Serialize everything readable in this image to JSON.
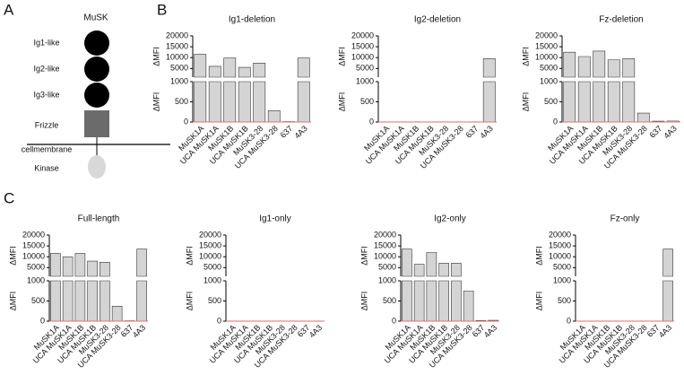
{
  "panel_labels": [
    "A",
    "B",
    "C"
  ],
  "diagram": {
    "title": "MuSK",
    "domains": [
      "Ig1-like",
      "Ig2-like",
      "Ig3-like",
      "Frizzle"
    ],
    "membrane": "cellmembrane",
    "kinase": "Kinase"
  },
  "chart_data": [
    {
      "type": "bar",
      "title": "Ig1-deletion",
      "ylabel": "ΔMFI",
      "categories": [
        "MuSK1A",
        "UCA MuSK1A",
        "MuSK1B",
        "UCA MuSK1B",
        "MuSK3-28",
        "UCA MuSK3-28",
        "637",
        "4A3"
      ],
      "values": [
        11500,
        6000,
        9800,
        5500,
        7500,
        280,
        10,
        9800
      ],
      "color": "#d4d4d4",
      "ylim_lower": [
        0,
        1000
      ],
      "yticks_lower": [
        0,
        500,
        1000
      ],
      "ylim_upper": [
        1000,
        20000
      ],
      "yticks_upper": [
        5000,
        10000,
        15000,
        20000
      ]
    },
    {
      "type": "bar",
      "title": "Ig2-deletion",
      "ylabel": "ΔMFI",
      "categories": [
        "MuSK1A",
        "UCA MuSK1A",
        "MuSK1B",
        "UCA MuSK1B",
        "MuSK3-28",
        "UCA MuSK3-28",
        "637",
        "4A3"
      ],
      "values": [
        5,
        5,
        5,
        5,
        5,
        5,
        5,
        9500
      ],
      "color": "#d4d4d4",
      "ylim_lower": [
        0,
        1000
      ],
      "yticks_lower": [
        0,
        500,
        1000
      ],
      "ylim_upper": [
        1000,
        20000
      ],
      "yticks_upper": [
        5000,
        10000,
        15000,
        20000
      ]
    },
    {
      "type": "bar",
      "title": "Fz-deletion",
      "ylabel": "ΔMFI",
      "categories": [
        "MuSK1A",
        "UCA MuSK1A",
        "MuSK1B",
        "UCA MuSK1B",
        "MuSK3-28",
        "UCA MuSK3-28",
        "637",
        "4A3"
      ],
      "values": [
        12500,
        10500,
        13000,
        9000,
        9500,
        220,
        20,
        25
      ],
      "color": "#d4d4d4",
      "ylim_lower": [
        0,
        1000
      ],
      "yticks_lower": [
        0,
        500,
        1000
      ],
      "ylim_upper": [
        1000,
        20000
      ],
      "yticks_upper": [
        5000,
        10000,
        15000,
        20000
      ]
    },
    {
      "type": "bar",
      "title": "Full-length",
      "ylabel": "ΔMFI",
      "categories": [
        "MuSK1A",
        "UCA MuSK1A",
        "MuSK1B",
        "UCA MuSK1B",
        "MuSK3-28",
        "UCA MuSK3-28",
        "637",
        "4A3"
      ],
      "values": [
        11500,
        10000,
        11500,
        8000,
        7500,
        370,
        10,
        13500
      ],
      "color": "#d4d4d4",
      "ylim_lower": [
        0,
        1000
      ],
      "yticks_lower": [
        0,
        500,
        1000
      ],
      "ylim_upper": [
        1000,
        20000
      ],
      "yticks_upper": [
        5000,
        10000,
        15000,
        20000
      ]
    },
    {
      "type": "bar",
      "title": "Ig1-only",
      "ylabel": "ΔMFI",
      "categories": [
        "MuSK1A",
        "UCA MuSK1A",
        "MuSK1B",
        "UCA MuSK1B",
        "MuSK3-28",
        "UCA MuSK3-28",
        "637",
        "4A3"
      ],
      "values": [
        5,
        5,
        5,
        5,
        5,
        5,
        5,
        5
      ],
      "color": "#d4d4d4",
      "ylim_lower": [
        0,
        1000
      ],
      "yticks_lower": [
        0,
        500,
        1000
      ],
      "ylim_upper": [
        1000,
        20000
      ],
      "yticks_upper": [
        5000,
        10000,
        15000,
        20000
      ]
    },
    {
      "type": "bar",
      "title": "Ig2-only",
      "ylabel": "ΔMFI",
      "categories": [
        "MuSK1A",
        "UCA MuSK1A",
        "MuSK1B",
        "UCA MuSK1B",
        "MuSK3-28",
        "UCA MuSK3-28",
        "637",
        "4A3"
      ],
      "values": [
        13500,
        6500,
        12000,
        7000,
        7000,
        750,
        15,
        20
      ],
      "color": "#d4d4d4",
      "ylim_lower": [
        0,
        1000
      ],
      "yticks_lower": [
        0,
        500,
        1000
      ],
      "ylim_upper": [
        1000,
        20000
      ],
      "yticks_upper": [
        5000,
        10000,
        15000,
        20000
      ]
    },
    {
      "type": "bar",
      "title": "Fz-only",
      "ylabel": "ΔMFI",
      "categories": [
        "MuSK1A",
        "UCA MuSK1A",
        "MuSK1B",
        "UCA MuSK1B",
        "MuSK3-28",
        "UCA MuSK3-28",
        "637",
        "4A3"
      ],
      "values": [
        5,
        5,
        5,
        5,
        5,
        5,
        5,
        13500
      ],
      "color": "#d4d4d4",
      "ylim_lower": [
        0,
        1000
      ],
      "yticks_lower": [
        0,
        500,
        1000
      ],
      "ylim_upper": [
        1000,
        20000
      ],
      "yticks_upper": [
        5000,
        10000,
        15000,
        20000
      ]
    }
  ]
}
